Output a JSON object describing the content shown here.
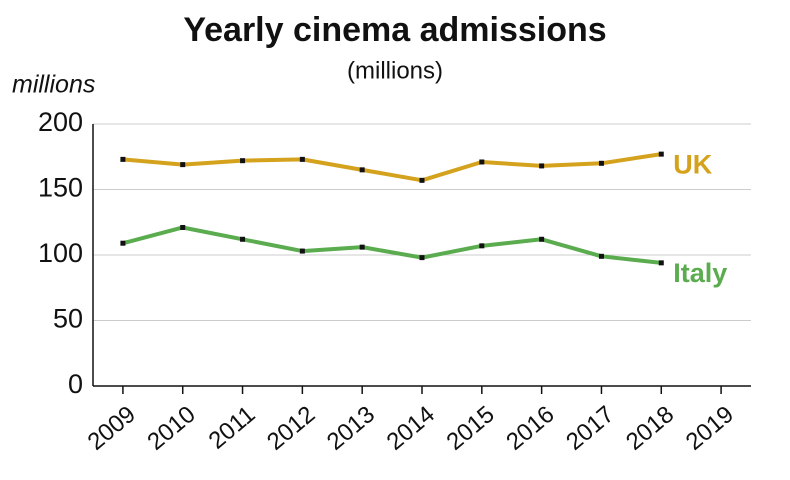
{
  "chart_data": {
    "type": "line",
    "title": "Yearly cinema admissions",
    "subtitle": "(millions)",
    "y_label": "millions",
    "x": [
      2009,
      2010,
      2011,
      2012,
      2013,
      2014,
      2015,
      2016,
      2017,
      2018
    ],
    "series": [
      {
        "name": "UK",
        "color": "#d4a21c",
        "values": [
          173,
          169,
          172,
          173,
          165,
          157,
          171,
          168,
          170,
          177
        ]
      },
      {
        "name": "Italy",
        "color": "#5aac4f",
        "values": [
          109,
          121,
          112,
          103,
          106,
          98,
          107,
          112,
          99,
          94
        ]
      }
    ],
    "xlim": [
      2008.5,
      2019.5
    ],
    "xticks": [
      2009,
      2010,
      2011,
      2012,
      2013,
      2014,
      2015,
      2016,
      2017,
      2018,
      2019
    ],
    "ylim": [
      0,
      200
    ],
    "yticks": [
      0,
      50,
      100,
      150,
      200
    ],
    "grid": true
  }
}
